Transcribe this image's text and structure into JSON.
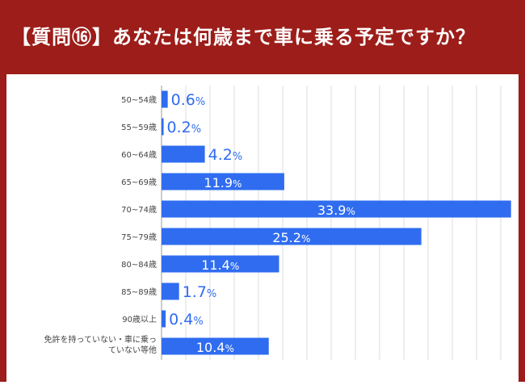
{
  "header": {
    "title": "【質問⑯】あなたは何歳まで車に乗る予定ですか？"
  },
  "colors": {
    "header_bg": "#9c1d19",
    "bar": "#2f6cf0",
    "label_blue": "#2f6cf0",
    "label_white": "#ffffff",
    "grid": "#dcdcdc",
    "category_text": "#444444"
  },
  "chart_data": {
    "type": "bar",
    "orientation": "horizontal",
    "categories": [
      [
        "50~54歳"
      ],
      [
        "55~59歳"
      ],
      [
        "60~64歳"
      ],
      [
        "65~69歳"
      ],
      [
        "70~74歳"
      ],
      [
        "75~79歳"
      ],
      [
        "80~84歳"
      ],
      [
        "85~89歳"
      ],
      [
        "90歳以上"
      ],
      [
        "免許を持っていない・車に乗っ",
        "ていない等他"
      ]
    ],
    "values": [
      0.6,
      0.2,
      4.2,
      11.9,
      33.9,
      25.2,
      11.4,
      1.7,
      0.4,
      10.4
    ],
    "value_labels": [
      "0.6",
      "0.2",
      "4.2",
      "11.9",
      "33.9",
      "25.2",
      "11.4",
      "1.7",
      "0.4",
      "10.4"
    ],
    "unit": "%",
    "xlim": [
      0,
      34
    ],
    "grid": true
  }
}
